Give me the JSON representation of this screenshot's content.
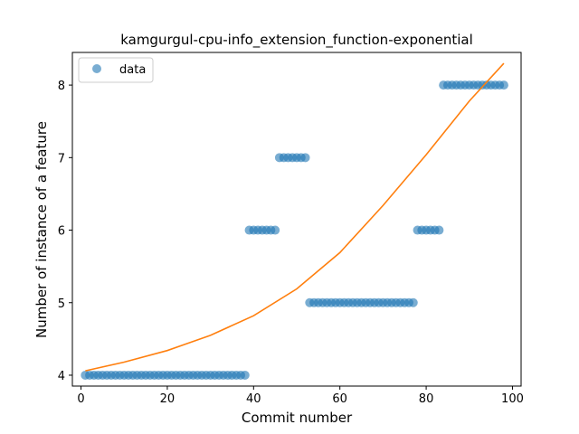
{
  "chart_data": {
    "type": "scatter",
    "title": "kamgurgul-cpu-info_extension_function-exponential",
    "xlabel": "Commit number",
    "ylabel": "Number of instance of a feature",
    "xlim": [
      -2,
      102
    ],
    "ylim": [
      3.85,
      8.45
    ],
    "xticks": [
      0,
      20,
      40,
      60,
      80,
      100
    ],
    "yticks": [
      4,
      5,
      6,
      7,
      8
    ],
    "grid": false,
    "legend_position": "upper-left",
    "colors": {
      "data": "#1f77b4",
      "fit": "#ff7f0e"
    },
    "series": [
      {
        "name": "data",
        "kind": "scatter",
        "points": [
          [
            1,
            4
          ],
          [
            2,
            4
          ],
          [
            3,
            4
          ],
          [
            4,
            4
          ],
          [
            5,
            4
          ],
          [
            6,
            4
          ],
          [
            7,
            4
          ],
          [
            8,
            4
          ],
          [
            9,
            4
          ],
          [
            10,
            4
          ],
          [
            11,
            4
          ],
          [
            12,
            4
          ],
          [
            13,
            4
          ],
          [
            14,
            4
          ],
          [
            15,
            4
          ],
          [
            16,
            4
          ],
          [
            17,
            4
          ],
          [
            18,
            4
          ],
          [
            19,
            4
          ],
          [
            20,
            4
          ],
          [
            21,
            4
          ],
          [
            22,
            4
          ],
          [
            23,
            4
          ],
          [
            24,
            4
          ],
          [
            25,
            4
          ],
          [
            26,
            4
          ],
          [
            27,
            4
          ],
          [
            28,
            4
          ],
          [
            29,
            4
          ],
          [
            30,
            4
          ],
          [
            31,
            4
          ],
          [
            32,
            4
          ],
          [
            33,
            4
          ],
          [
            34,
            4
          ],
          [
            35,
            4
          ],
          [
            36,
            4
          ],
          [
            37,
            4
          ],
          [
            38,
            4
          ],
          [
            39,
            6
          ],
          [
            40,
            6
          ],
          [
            41,
            6
          ],
          [
            42,
            6
          ],
          [
            43,
            6
          ],
          [
            44,
            6
          ],
          [
            45,
            6
          ],
          [
            46,
            7
          ],
          [
            47,
            7
          ],
          [
            48,
            7
          ],
          [
            49,
            7
          ],
          [
            50,
            7
          ],
          [
            51,
            7
          ],
          [
            52,
            7
          ],
          [
            53,
            5
          ],
          [
            54,
            5
          ],
          [
            55,
            5
          ],
          [
            56,
            5
          ],
          [
            57,
            5
          ],
          [
            58,
            5
          ],
          [
            59,
            5
          ],
          [
            60,
            5
          ],
          [
            61,
            5
          ],
          [
            62,
            5
          ],
          [
            63,
            5
          ],
          [
            64,
            5
          ],
          [
            65,
            5
          ],
          [
            66,
            5
          ],
          [
            67,
            5
          ],
          [
            68,
            5
          ],
          [
            69,
            5
          ],
          [
            70,
            5
          ],
          [
            71,
            5
          ],
          [
            72,
            5
          ],
          [
            73,
            5
          ],
          [
            74,
            5
          ],
          [
            75,
            5
          ],
          [
            76,
            5
          ],
          [
            77,
            5
          ],
          [
            78,
            6
          ],
          [
            79,
            6
          ],
          [
            80,
            6
          ],
          [
            81,
            6
          ],
          [
            82,
            6
          ],
          [
            83,
            6
          ],
          [
            84,
            8
          ],
          [
            85,
            8
          ],
          [
            86,
            8
          ],
          [
            87,
            8
          ],
          [
            88,
            8
          ],
          [
            89,
            8
          ],
          [
            90,
            8
          ],
          [
            91,
            8
          ],
          [
            92,
            8
          ],
          [
            93,
            8
          ],
          [
            94,
            8
          ],
          [
            95,
            8
          ],
          [
            96,
            8
          ],
          [
            97,
            8
          ],
          [
            98,
            8
          ]
        ]
      },
      {
        "kind": "line",
        "model": "exponential",
        "points": [
          [
            1,
            4.06
          ],
          [
            10,
            4.18
          ],
          [
            20,
            4.34
          ],
          [
            30,
            4.55
          ],
          [
            40,
            4.82
          ],
          [
            50,
            5.19
          ],
          [
            60,
            5.69
          ],
          [
            70,
            6.34
          ],
          [
            80,
            7.04
          ],
          [
            90,
            7.78
          ],
          [
            98,
            8.3
          ]
        ]
      }
    ]
  }
}
